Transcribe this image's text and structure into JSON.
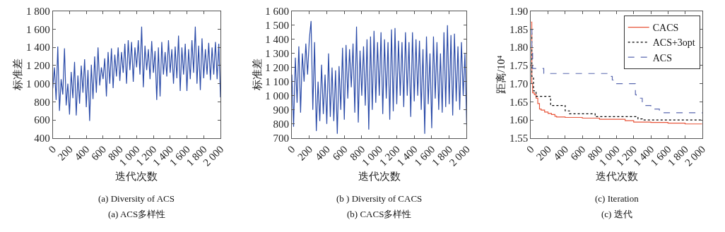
{
  "chart_data": [
    {
      "type": "line",
      "xlabel": "迭代次数",
      "ylabel": "标准差",
      "annotations": [
        "(a) Diversity of ACS",
        "(a) ACS多样性"
      ],
      "xlim": [
        0,
        2000
      ],
      "ylim": [
        400,
        1800
      ],
      "xticks": [
        0,
        200,
        400,
        600,
        800,
        {
          "value": 1000,
          "label": "1 000"
        },
        {
          "value": 1200,
          "label": "1 200"
        },
        {
          "value": 1400,
          "label": "1 400"
        },
        {
          "value": 1600,
          "label": "1 600"
        },
        {
          "value": 1800,
          "label": "1 800"
        },
        {
          "value": 2000,
          "label": "2 000"
        }
      ],
      "yticks": [
        400,
        600,
        800,
        {
          "value": 1000,
          "label": "1 000"
        },
        {
          "value": 1200,
          "label": "1 200"
        },
        {
          "value": 1400,
          "label": "1 400"
        },
        {
          "value": 1600,
          "label": "1 600"
        },
        {
          "value": 1800,
          "label": "1 800"
        }
      ],
      "x": [
        0,
        20,
        40,
        60,
        80,
        100,
        120,
        140,
        160,
        180,
        200,
        220,
        240,
        260,
        280,
        300,
        320,
        340,
        360,
        380,
        400,
        420,
        440,
        460,
        480,
        500,
        520,
        540,
        560,
        580,
        600,
        620,
        640,
        660,
        680,
        700,
        720,
        740,
        760,
        780,
        800,
        820,
        840,
        860,
        880,
        900,
        920,
        940,
        960,
        980,
        1000,
        1020,
        1040,
        1060,
        1080,
        1100,
        1120,
        1140,
        1160,
        1180,
        1200,
        1220,
        1240,
        1260,
        1280,
        1300,
        1320,
        1340,
        1360,
        1380,
        1400,
        1420,
        1440,
        1460,
        1480,
        1500,
        1520,
        1540,
        1560,
        1580,
        1600,
        1620,
        1640,
        1660,
        1680,
        1700,
        1720,
        1740,
        1760,
        1780,
        1800,
        1820,
        1840,
        1860,
        1880,
        1900,
        1920,
        1940,
        1960,
        1980,
        2000
      ],
      "series": [
        {
          "color": "#2b4ba8",
          "values": [
            950,
            1180,
            820,
            1410,
            700,
            1050,
            880,
            1390,
            760,
            1000,
            660,
            1130,
            840,
            1240,
            650,
            1090,
            780,
            1200,
            900,
            1270,
            740,
            1150,
            590,
            1210,
            830,
            1300,
            900,
            1400,
            980,
            1180,
            1050,
            1280,
            860,
            1350,
            1000,
            1390,
            950,
            1320,
            1080,
            1400,
            1030,
            1350,
            1120,
            1440,
            1000,
            1480,
            1150,
            1460,
            1020,
            1400,
            1180,
            1480,
            1100,
            1630,
            960,
            1420,
            1150,
            1380,
            1050,
            1470,
            1120,
            1360,
            820,
            1400,
            860,
            1460,
            1100,
            1350,
            1080,
            1480,
            1120,
            1380,
            1000,
            1410,
            1060,
            1530,
            920,
            1400,
            1100,
            1440,
            920,
            1380,
            1050,
            1480,
            1120,
            1630,
            1000,
            1420,
            930,
            1500,
            1060,
            1380,
            1100,
            1450,
            1040,
            1400,
            1100,
            1460,
            1050,
            1440,
            850
          ]
        }
      ]
    },
    {
      "type": "line",
      "xlabel": "迭代次数",
      "ylabel": "标准差",
      "annotations": [
        "(b ) Diversity of CACS",
        "(b) CACS多样性"
      ],
      "xlim": [
        0,
        2000
      ],
      "ylim": [
        700,
        1600
      ],
      "xticks": [
        0,
        200,
        400,
        600,
        800,
        {
          "value": 1000,
          "label": "1 000"
        },
        {
          "value": 1200,
          "label": "1 200"
        },
        {
          "value": 1400,
          "label": "1 400"
        },
        {
          "value": 1600,
          "label": "1 600"
        },
        {
          "value": 1800,
          "label": "1 800"
        },
        {
          "value": 2000,
          "label": "2 000"
        }
      ],
      "yticks": [
        700,
        800,
        900,
        {
          "value": 1000,
          "label": "1 000"
        },
        {
          "value": 1100,
          "label": "1 100"
        },
        {
          "value": 1200,
          "label": "1 200"
        },
        {
          "value": 1300,
          "label": "1 300"
        },
        {
          "value": 1400,
          "label": "1 400"
        },
        {
          "value": 1500,
          "label": "1 500"
        },
        {
          "value": 1600,
          "label": "1 600"
        }
      ],
      "x": [
        0,
        20,
        40,
        60,
        80,
        100,
        120,
        140,
        160,
        180,
        200,
        220,
        240,
        260,
        280,
        300,
        320,
        340,
        360,
        380,
        400,
        420,
        440,
        460,
        480,
        500,
        520,
        540,
        560,
        580,
        600,
        620,
        640,
        660,
        680,
        700,
        720,
        740,
        760,
        780,
        800,
        820,
        840,
        860,
        880,
        900,
        920,
        940,
        960,
        980,
        1000,
        1020,
        1040,
        1060,
        1080,
        1100,
        1120,
        1140,
        1160,
        1180,
        1200,
        1220,
        1240,
        1260,
        1280,
        1300,
        1320,
        1340,
        1360,
        1380,
        1400,
        1420,
        1440,
        1460,
        1480,
        1500,
        1520,
        1540,
        1560,
        1580,
        1600,
        1620,
        1640,
        1660,
        1680,
        1700,
        1720,
        1740,
        1760,
        1780,
        1800,
        1820,
        1840,
        1860,
        1880,
        1900,
        1920,
        1940,
        1960,
        1980,
        2000
      ],
      "series": [
        {
          "color": "#2b4ba8",
          "values": [
            1150,
            780,
            1270,
            950,
            1350,
            880,
            1300,
            1100,
            1370,
            1150,
            1400,
            1530,
            900,
            1380,
            750,
            1100,
            820,
            1220,
            870,
            1150,
            800,
            1300,
            850,
            1200,
            820,
            1180,
            730,
            1210,
            900,
            1340,
            830,
            1360,
            980,
            1330,
            1060,
            1370,
            880,
            1490,
            810,
            1320,
            1000,
            1350,
            930,
            1400,
            760,
            1420,
            900,
            1460,
            950,
            1380,
            1000,
            1450,
            870,
            1400,
            980,
            1380,
            830,
            1470,
            890,
            1480,
            940,
            1390,
            1000,
            1380,
            920,
            1450,
            1000,
            1380,
            850,
            1450,
            960,
            1400,
            1000,
            1390,
            900,
            1330,
            730,
            1420,
            940,
            1300,
            770,
            1420,
            980,
            1380,
            900,
            1300,
            880,
            1450,
            920,
            1500,
            940,
            1430,
            860,
            1440,
            960,
            1350,
            900,
            1380,
            1000,
            1300,
            790
          ]
        }
      ]
    },
    {
      "type": "line",
      "xlabel": "迭代次数",
      "ylabel": "距离/10⁴",
      "annotations": [
        "(c) Iteration",
        "(c) 迭代"
      ],
      "legend": "top right",
      "xlim": [
        0,
        2000
      ],
      "ylim": [
        1.55,
        1.9
      ],
      "xticks": [
        0,
        200,
        400,
        600,
        800,
        {
          "value": 1000,
          "label": "1 000"
        },
        {
          "value": 1200,
          "label": "1 200"
        },
        {
          "value": 1400,
          "label": "1 400"
        },
        {
          "value": 1600,
          "label": "1 600"
        },
        {
          "value": 1800,
          "label": "1 800"
        },
        {
          "value": 2000,
          "label": "2 000"
        }
      ],
      "yticks": [
        {
          "value": 1.55,
          "label": "1.55"
        },
        {
          "value": 1.6,
          "label": "1.60"
        },
        {
          "value": 1.65,
          "label": "1.65"
        },
        {
          "value": 1.7,
          "label": "1.70"
        },
        {
          "value": 1.75,
          "label": "1.75"
        },
        {
          "value": 1.8,
          "label": "1.80"
        },
        {
          "value": 1.85,
          "label": "1.85"
        },
        {
          "value": 1.9,
          "label": "1.90"
        }
      ],
      "series": [
        {
          "name": "CACS",
          "type": "step",
          "color": "#e8553a",
          "line_style": "solid",
          "x": [
            0,
            10,
            20,
            40,
            60,
            80,
            100,
            120,
            160,
            200,
            240,
            280,
            300,
            400,
            600,
            800,
            1000,
            1100,
            1200,
            1400,
            1600,
            1800,
            2000
          ],
          "values": [
            1.87,
            1.7,
            1.675,
            1.67,
            1.66,
            1.645,
            1.63,
            1.627,
            1.622,
            1.618,
            1.615,
            1.61,
            1.608,
            1.607,
            1.605,
            1.602,
            1.602,
            1.598,
            1.594,
            1.593,
            1.591,
            1.589,
            1.589
          ]
        },
        {
          "name": "ACS+3opt",
          "type": "step",
          "color": "#000000",
          "line_style": "dotted",
          "x": [
            0,
            10,
            30,
            60,
            230,
            400,
            450,
            750,
            1250,
            1300,
            2000
          ],
          "values": [
            1.85,
            1.72,
            1.68,
            1.665,
            1.64,
            1.625,
            1.617,
            1.609,
            1.603,
            1.6,
            1.6
          ]
        },
        {
          "name": "ACS",
          "type": "step",
          "color": "#5a68b0",
          "line_style": "dashed",
          "x": [
            0,
            10,
            20,
            150,
            900,
            950,
            1000,
            1220,
            1230,
            1300,
            1400,
            1500,
            2000
          ],
          "values": [
            1.85,
            1.79,
            1.742,
            1.728,
            1.72,
            1.71,
            1.7,
            1.67,
            1.66,
            1.64,
            1.63,
            1.62,
            1.618
          ]
        }
      ]
    }
  ]
}
